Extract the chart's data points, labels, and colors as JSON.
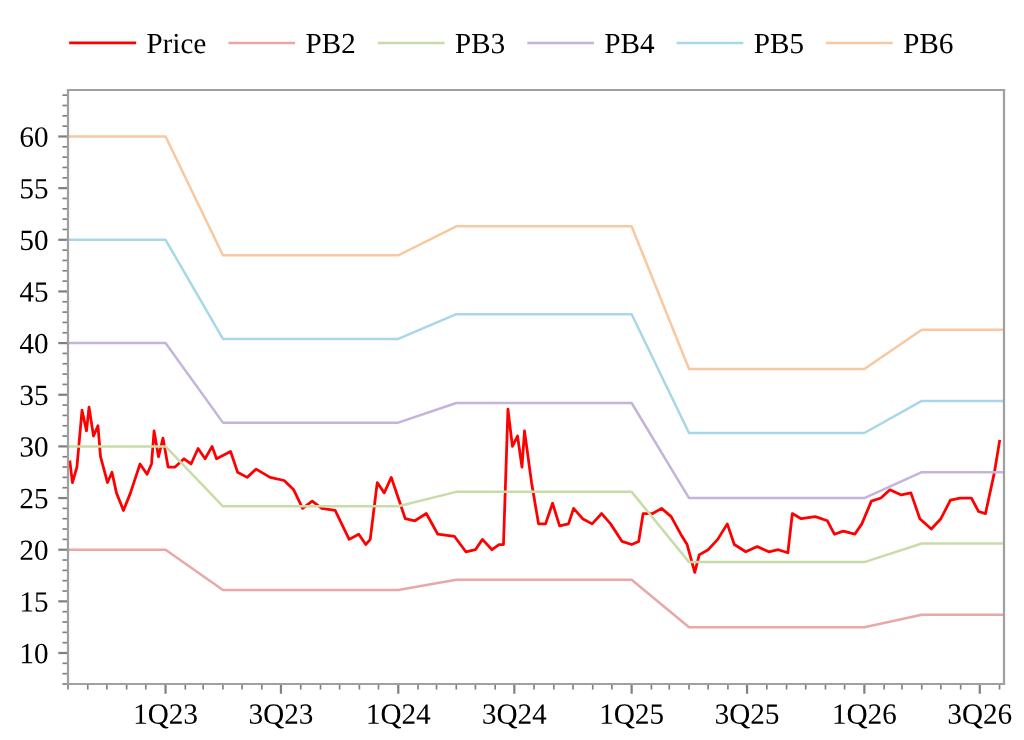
{
  "chart_data": {
    "type": "line",
    "legend": "top",
    "grid": false,
    "marker": "none",
    "line_style": "solid",
    "xlim": [
      "2022-08-01",
      "2026-08-08"
    ],
    "ylim": [
      7,
      64.5
    ],
    "xticks": [
      {
        "value": "2023-01-01",
        "label": "1Q23"
      },
      {
        "value": "2023-07-01",
        "label": "3Q23"
      },
      {
        "value": "2024-01-01",
        "label": "1Q24"
      },
      {
        "value": "2024-07-01",
        "label": "3Q24"
      },
      {
        "value": "2025-01-01",
        "label": "1Q25"
      },
      {
        "value": "2025-07-01",
        "label": "3Q25"
      },
      {
        "value": "2026-01-01",
        "label": "1Q26"
      },
      {
        "value": "2026-07-01",
        "label": "3Q26"
      }
    ],
    "yticks": [
      10,
      15,
      20,
      25,
      30,
      35,
      40,
      45,
      50,
      55,
      60
    ],
    "series": [
      {
        "name": "Price",
        "color": "#ff0000",
        "x": [
          "2022-08-04",
          "2022-08-08",
          "2022-08-15",
          "2022-08-23",
          "2022-08-30",
          "2022-09-03",
          "2022-09-10",
          "2022-09-17",
          "2022-09-21",
          "2022-10-02",
          "2022-10-09",
          "2022-10-16",
          "2022-10-27",
          "2022-11-07",
          "2022-11-15",
          "2022-11-22",
          "2022-12-03",
          "2022-12-10",
          "2022-12-14",
          "2022-12-21",
          "2022-12-28",
          "2023-01-05",
          "2023-01-16",
          "2023-01-30",
          "2023-02-10",
          "2023-02-21",
          "2023-03-04",
          "2023-03-15",
          "2023-03-22",
          "2023-04-13",
          "2023-04-24",
          "2023-05-09",
          "2023-05-23",
          "2023-06-14",
          "2023-07-06",
          "2023-07-21",
          "2023-08-04",
          "2023-08-19",
          "2023-09-03",
          "2023-09-24",
          "2023-10-16",
          "2023-10-31",
          "2023-11-11",
          "2023-11-18",
          "2023-11-29",
          "2023-12-10",
          "2023-12-21",
          "2024-01-01",
          "2024-01-12",
          "2024-01-27",
          "2024-02-14",
          "2024-03-03",
          "2024-03-29",
          "2024-04-16",
          "2024-05-01",
          "2024-05-12",
          "2024-05-27",
          "2024-06-07",
          "2024-06-14",
          "2024-06-21",
          "2024-06-28",
          "2024-07-06",
          "2024-07-13",
          "2024-07-17",
          "2024-07-28",
          "2024-08-08",
          "2024-08-19",
          "2024-08-30",
          "2024-09-10",
          "2024-09-24",
          "2024-10-02",
          "2024-10-16",
          "2024-10-31",
          "2024-11-15",
          "2024-11-29",
          "2024-12-17",
          "2025-01-01",
          "2025-01-12",
          "2025-01-19",
          "2025-02-03",
          "2025-02-17",
          "2025-03-04",
          "2025-03-19",
          "2025-03-29",
          "2025-04-10",
          "2025-04-17",
          "2025-05-01",
          "2025-05-16",
          "2025-05-31",
          "2025-06-11",
          "2025-06-29",
          "2025-07-17",
          "2025-08-04",
          "2025-08-19",
          "2025-09-03",
          "2025-09-10",
          "2025-09-24",
          "2025-10-16",
          "2025-11-04",
          "2025-11-15",
          "2025-11-29",
          "2025-12-17",
          "2025-12-28",
          "2026-01-12",
          "2026-01-27",
          "2026-02-10",
          "2026-02-28",
          "2026-03-15",
          "2026-03-29",
          "2026-04-16",
          "2026-05-01",
          "2026-05-16",
          "2026-05-31",
          "2026-06-18",
          "2026-06-29",
          "2026-07-10",
          "2026-07-17",
          "2026-07-24",
          "2026-08-01"
        ],
        "values": [
          28.5,
          26.5,
          28,
          33.5,
          31.5,
          33.8,
          31,
          32,
          29,
          26.5,
          27.5,
          25.5,
          23.8,
          25.5,
          27,
          28.3,
          27.3,
          28.3,
          31.5,
          29,
          30.8,
          28,
          28,
          28.8,
          28.3,
          29.8,
          28.8,
          30,
          28.8,
          29.5,
          27.5,
          27,
          27.8,
          27,
          26.7,
          25.8,
          24,
          24.7,
          24,
          23.8,
          21,
          21.5,
          20.5,
          21,
          26.5,
          25.5,
          27,
          25,
          23,
          22.8,
          23.5,
          21.5,
          21.3,
          19.8,
          20,
          21,
          20,
          20.5,
          20.5,
          33.6,
          30,
          31,
          28,
          31.5,
          26.5,
          22.5,
          22.5,
          24.5,
          22.3,
          22.5,
          24,
          23,
          22.5,
          23.5,
          22.5,
          20.8,
          20.5,
          20.8,
          23.5,
          23.5,
          24,
          23.2,
          21.5,
          20.5,
          17.8,
          19.5,
          20,
          21,
          22.5,
          20.5,
          19.8,
          20.3,
          19.8,
          20,
          19.7,
          23.5,
          23,
          23.2,
          22.8,
          21.5,
          21.8,
          21.5,
          22.5,
          24.7,
          25,
          25.8,
          25.3,
          25.5,
          23,
          22,
          23,
          24.8,
          25,
          25,
          23.7,
          23.5,
          25.5,
          27.5,
          30.5
        ]
      },
      {
        "name": "PB2",
        "color": "#e8a8a8",
        "x": [
          "2022-08-01",
          "2023-01-01",
          "2023-04-01",
          "2024-01-01",
          "2024-04-01",
          "2025-01-01",
          "2025-04-01",
          "2026-01-01",
          "2026-04-01",
          "2026-08-08"
        ],
        "values": [
          20,
          20,
          16.1,
          16.1,
          17.1,
          17.1,
          12.5,
          12.5,
          13.7,
          13.7
        ]
      },
      {
        "name": "PB3",
        "color": "#c8dca8",
        "x": [
          "2022-08-01",
          "2023-01-01",
          "2023-04-01",
          "2024-01-01",
          "2024-04-01",
          "2025-01-01",
          "2025-04-01",
          "2026-01-01",
          "2026-04-01",
          "2026-08-08"
        ],
        "values": [
          30,
          30,
          24.2,
          24.2,
          25.6,
          25.6,
          18.8,
          18.8,
          20.6,
          20.6
        ]
      },
      {
        "name": "PB4",
        "color": "#c4b4dc",
        "x": [
          "2022-08-01",
          "2023-01-01",
          "2023-04-01",
          "2024-01-01",
          "2024-04-01",
          "2025-01-01",
          "2025-04-01",
          "2026-01-01",
          "2026-04-01",
          "2026-08-08"
        ],
        "values": [
          40,
          40,
          32.3,
          32.3,
          34.2,
          34.2,
          25,
          25,
          27.5,
          27.5
        ]
      },
      {
        "name": "PB5",
        "color": "#a8d8e8",
        "x": [
          "2022-08-01",
          "2023-01-01",
          "2023-04-01",
          "2024-01-01",
          "2024-04-01",
          "2025-01-01",
          "2025-04-01",
          "2026-01-01",
          "2026-04-01",
          "2026-08-08"
        ],
        "values": [
          50,
          50,
          40.4,
          40.4,
          42.8,
          42.8,
          31.3,
          31.3,
          34.4,
          34.4
        ]
      },
      {
        "name": "PB6",
        "color": "#f8c8a0",
        "x": [
          "2022-08-01",
          "2023-01-01",
          "2023-04-01",
          "2024-01-01",
          "2024-04-01",
          "2025-01-01",
          "2025-04-01",
          "2026-01-01",
          "2026-04-01",
          "2026-08-08"
        ],
        "values": [
          60,
          60,
          48.5,
          48.5,
          51.3,
          51.3,
          37.5,
          37.5,
          41.3,
          41.3
        ]
      }
    ]
  }
}
